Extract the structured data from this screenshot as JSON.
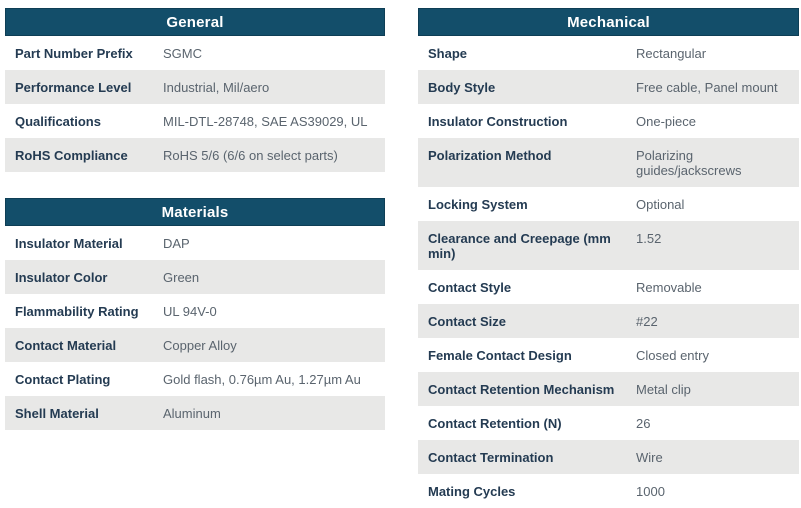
{
  "theme": {
    "header_bg": "#134e6a",
    "header_border": "#0e3e55",
    "header_text": "#ffffff",
    "row_alt_bg": "#e8e8e7",
    "label_color": "#243b52",
    "value_color": "#5a646e",
    "page_bg": "#ffffff"
  },
  "tables": {
    "general": {
      "title": "General",
      "rows": [
        {
          "label": "Part Number Prefix",
          "value": "SGMC"
        },
        {
          "label": "Performance Level",
          "value": "Industrial, Mil/aero"
        },
        {
          "label": "Qualifications",
          "value": "MIL-DTL-28748, SAE AS39029, UL"
        },
        {
          "label": "RoHS Compliance",
          "value": "RoHS 5/6 (6/6 on select parts)"
        }
      ]
    },
    "materials": {
      "title": "Materials",
      "rows": [
        {
          "label": "Insulator Material",
          "value": "DAP"
        },
        {
          "label": "Insulator Color",
          "value": "Green"
        },
        {
          "label": "Flammability Rating",
          "value": "UL 94V-0"
        },
        {
          "label": "Contact Material",
          "value": "Copper Alloy"
        },
        {
          "label": "Contact Plating",
          "value": "Gold flash, 0.76µm Au, 1.27µm Au"
        },
        {
          "label": "Shell Material",
          "value": "Aluminum"
        }
      ]
    },
    "mechanical": {
      "title": "Mechanical",
      "rows": [
        {
          "label": "Shape",
          "value": "Rectangular"
        },
        {
          "label": "Body Style",
          "value": "Free cable, Panel mount"
        },
        {
          "label": "Insulator Construction",
          "value": "One-piece"
        },
        {
          "label": "Polarization Method",
          "value": "Polarizing\nguides/jackscrews"
        },
        {
          "label": "Locking System",
          "value": "Optional"
        },
        {
          "label": "Clearance and Creepage (mm min)",
          "value": "1.52"
        },
        {
          "label": "Contact Style",
          "value": "Removable"
        },
        {
          "label": "Contact Size",
          "value": "#22"
        },
        {
          "label": "Female Contact Design",
          "value": "Closed entry"
        },
        {
          "label": "Contact Retention Mechanism",
          "value": "Metal clip"
        },
        {
          "label": "Contact Retention (N)",
          "value": "26"
        },
        {
          "label": "Contact Termination",
          "value": "Wire"
        },
        {
          "label": "Mating Cycles",
          "value": "1000"
        }
      ]
    }
  }
}
